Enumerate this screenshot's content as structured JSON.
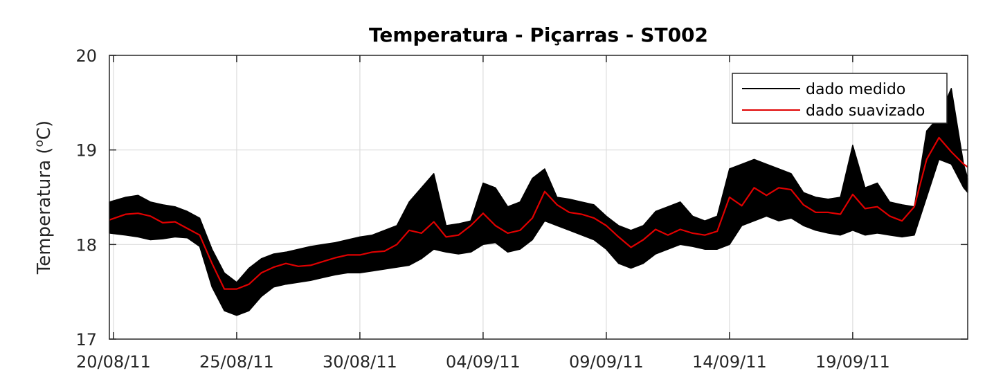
{
  "chart_data": {
    "type": "line",
    "title": "Temperatura - Piçarras - ST002",
    "xlabel": "",
    "ylabel": "Temperatura (°C)",
    "ylabel_parts": {
      "prefix": "Temperatura (",
      "sup": "o",
      "suffix": "C)"
    },
    "x_unit": "date",
    "xlim": [
      "2011-08-19T20:00",
      "2011-09-23T16:00"
    ],
    "ylim": [
      17,
      20
    ],
    "xticks": [
      {
        "value": "2011-08-20",
        "label": "20/08/11"
      },
      {
        "value": "2011-08-25",
        "label": "25/08/11"
      },
      {
        "value": "2011-08-30",
        "label": "30/08/11"
      },
      {
        "value": "2011-09-04",
        "label": "04/09/11"
      },
      {
        "value": "2011-09-09",
        "label": "09/09/11"
      },
      {
        "value": "2011-09-14",
        "label": "14/09/11"
      },
      {
        "value": "2011-09-19",
        "label": "19/09/11"
      }
    ],
    "yticks": [
      {
        "value": 17,
        "label": "17"
      },
      {
        "value": 18,
        "label": "18"
      },
      {
        "value": 19,
        "label": "19"
      },
      {
        "value": 20,
        "label": "20"
      }
    ],
    "grid": true,
    "legend_position": "top-right",
    "series": [
      {
        "name": "dado medido",
        "color": "#000000",
        "style": "band",
        "x": [
          "2011-08-19T20:00",
          "2011-08-20T12:00",
          "2011-08-21T00:00",
          "2011-08-21T12:00",
          "2011-08-22T00:00",
          "2011-08-22T12:00",
          "2011-08-23T00:00",
          "2011-08-23T12:00",
          "2011-08-24T00:00",
          "2011-08-24T12:00",
          "2011-08-25T00:00",
          "2011-08-25T12:00",
          "2011-08-26T00:00",
          "2011-08-26T12:00",
          "2011-08-27T00:00",
          "2011-08-27T12:00",
          "2011-08-28T00:00",
          "2011-08-28T12:00",
          "2011-08-29T00:00",
          "2011-08-29T12:00",
          "2011-08-30T00:00",
          "2011-08-30T12:00",
          "2011-08-31T00:00",
          "2011-08-31T12:00",
          "2011-09-01T00:00",
          "2011-09-01T12:00",
          "2011-09-02T00:00",
          "2011-09-02T12:00",
          "2011-09-03T00:00",
          "2011-09-03T12:00",
          "2011-09-04T00:00",
          "2011-09-04T12:00",
          "2011-09-05T00:00",
          "2011-09-05T12:00",
          "2011-09-06T00:00",
          "2011-09-06T12:00",
          "2011-09-07T00:00",
          "2011-09-07T12:00",
          "2011-09-08T00:00",
          "2011-09-08T12:00",
          "2011-09-09T00:00",
          "2011-09-09T12:00",
          "2011-09-10T00:00",
          "2011-09-10T12:00",
          "2011-09-11T00:00",
          "2011-09-11T12:00",
          "2011-09-12T00:00",
          "2011-09-12T12:00",
          "2011-09-13T00:00",
          "2011-09-13T12:00",
          "2011-09-14T00:00",
          "2011-09-14T12:00",
          "2011-09-15T00:00",
          "2011-09-15T12:00",
          "2011-09-16T00:00",
          "2011-09-16T12:00",
          "2011-09-17T00:00",
          "2011-09-17T12:00",
          "2011-09-18T00:00",
          "2011-09-18T12:00",
          "2011-09-19T00:00",
          "2011-09-19T12:00",
          "2011-09-20T00:00",
          "2011-09-20T12:00",
          "2011-09-21T00:00",
          "2011-09-21T12:00",
          "2011-09-22T00:00",
          "2011-09-22T12:00",
          "2011-09-23T00:00",
          "2011-09-23T12:00",
          "2011-09-23T16:00"
        ],
        "low": [
          18.12,
          18.1,
          18.08,
          18.05,
          18.06,
          18.08,
          18.07,
          17.98,
          17.55,
          17.3,
          17.25,
          17.3,
          17.45,
          17.55,
          17.58,
          17.6,
          17.62,
          17.65,
          17.68,
          17.7,
          17.7,
          17.72,
          17.74,
          17.76,
          17.78,
          17.85,
          17.95,
          17.92,
          17.9,
          17.92,
          18.0,
          18.02,
          17.92,
          17.95,
          18.05,
          18.25,
          18.2,
          18.15,
          18.1,
          18.05,
          17.95,
          17.8,
          17.75,
          17.8,
          17.9,
          17.95,
          18.0,
          17.98,
          17.95,
          17.95,
          18.0,
          18.2,
          18.25,
          18.3,
          18.25,
          18.28,
          18.2,
          18.15,
          18.12,
          18.1,
          18.15,
          18.1,
          18.12,
          18.1,
          18.08,
          18.1,
          18.5,
          18.9,
          18.85,
          18.6,
          18.55
        ],
        "high": [
          18.45,
          18.5,
          18.52,
          18.45,
          18.42,
          18.4,
          18.35,
          18.28,
          17.95,
          17.7,
          17.6,
          17.75,
          17.85,
          17.9,
          17.92,
          17.95,
          17.98,
          18.0,
          18.02,
          18.05,
          18.08,
          18.1,
          18.15,
          18.2,
          18.45,
          18.6,
          18.75,
          18.2,
          18.22,
          18.25,
          18.65,
          18.6,
          18.4,
          18.45,
          18.7,
          18.8,
          18.5,
          18.48,
          18.45,
          18.42,
          18.3,
          18.2,
          18.15,
          18.2,
          18.35,
          18.4,
          18.45,
          18.3,
          18.25,
          18.3,
          18.8,
          18.85,
          18.9,
          18.85,
          18.8,
          18.75,
          18.55,
          18.5,
          18.48,
          18.5,
          19.05,
          18.6,
          18.65,
          18.45,
          18.42,
          18.4,
          19.2,
          19.35,
          19.65,
          18.85,
          18.7
        ]
      },
      {
        "name": "dado suavizado",
        "color": "#e00000",
        "style": "line",
        "x": [
          "2011-08-19T20:00",
          "2011-08-20T12:00",
          "2011-08-21T00:00",
          "2011-08-21T12:00",
          "2011-08-22T00:00",
          "2011-08-22T12:00",
          "2011-08-23T00:00",
          "2011-08-23T12:00",
          "2011-08-24T00:00",
          "2011-08-24T12:00",
          "2011-08-25T00:00",
          "2011-08-25T12:00",
          "2011-08-26T00:00",
          "2011-08-26T12:00",
          "2011-08-27T00:00",
          "2011-08-27T12:00",
          "2011-08-28T00:00",
          "2011-08-28T12:00",
          "2011-08-29T00:00",
          "2011-08-29T12:00",
          "2011-08-30T00:00",
          "2011-08-30T12:00",
          "2011-08-31T00:00",
          "2011-08-31T12:00",
          "2011-09-01T00:00",
          "2011-09-01T12:00",
          "2011-09-02T00:00",
          "2011-09-02T12:00",
          "2011-09-03T00:00",
          "2011-09-03T12:00",
          "2011-09-04T00:00",
          "2011-09-04T12:00",
          "2011-09-05T00:00",
          "2011-09-05T12:00",
          "2011-09-06T00:00",
          "2011-09-06T12:00",
          "2011-09-07T00:00",
          "2011-09-07T12:00",
          "2011-09-08T00:00",
          "2011-09-08T12:00",
          "2011-09-09T00:00",
          "2011-09-09T12:00",
          "2011-09-10T00:00",
          "2011-09-10T12:00",
          "2011-09-11T00:00",
          "2011-09-11T12:00",
          "2011-09-12T00:00",
          "2011-09-12T12:00",
          "2011-09-13T00:00",
          "2011-09-13T12:00",
          "2011-09-14T00:00",
          "2011-09-14T12:00",
          "2011-09-15T00:00",
          "2011-09-15T12:00",
          "2011-09-16T00:00",
          "2011-09-16T12:00",
          "2011-09-17T00:00",
          "2011-09-17T12:00",
          "2011-09-18T00:00",
          "2011-09-18T12:00",
          "2011-09-19T00:00",
          "2011-09-19T12:00",
          "2011-09-20T00:00",
          "2011-09-20T12:00",
          "2011-09-21T00:00",
          "2011-09-21T12:00",
          "2011-09-22T00:00",
          "2011-09-22T12:00",
          "2011-09-23T00:00",
          "2011-09-23T12:00",
          "2011-09-23T16:00"
        ],
        "values": [
          18.26,
          18.32,
          18.33,
          18.3,
          18.23,
          18.24,
          18.17,
          18.1,
          17.8,
          17.53,
          17.53,
          17.58,
          17.7,
          17.76,
          17.8,
          17.77,
          17.78,
          17.82,
          17.86,
          17.89,
          17.89,
          17.92,
          17.93,
          18.0,
          18.15,
          18.12,
          18.24,
          18.08,
          18.1,
          18.2,
          18.33,
          18.2,
          18.12,
          18.15,
          18.28,
          18.56,
          18.42,
          18.34,
          18.32,
          18.28,
          18.2,
          18.08,
          17.97,
          18.05,
          18.16,
          18.1,
          18.16,
          18.12,
          18.1,
          18.14,
          18.5,
          18.41,
          18.6,
          18.52,
          18.6,
          18.58,
          18.42,
          18.34,
          18.34,
          18.32,
          18.53,
          18.38,
          18.4,
          18.3,
          18.25,
          18.4,
          18.9,
          19.13,
          18.98,
          18.85,
          18.82
        ]
      }
    ]
  }
}
